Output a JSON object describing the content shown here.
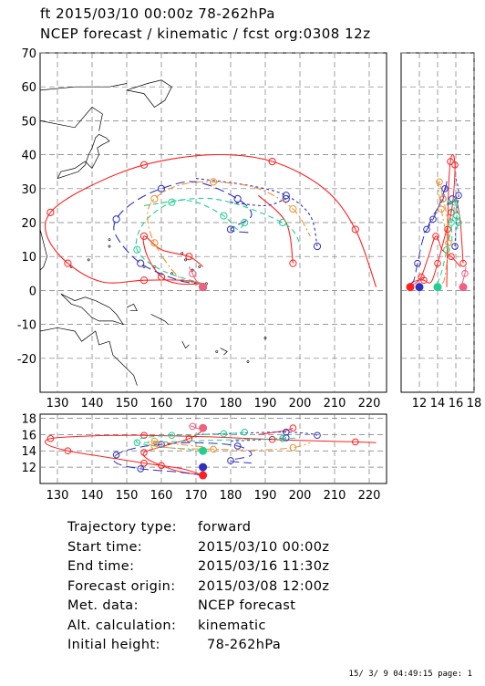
{
  "header": {
    "line1": "ft 2015/03/10 00:00z   78-262hPa",
    "line2": "NCEP forecast / kinematic / fcst org:0308 12z"
  },
  "info": [
    {
      "label": "Trajectory type:",
      "value": "forward"
    },
    {
      "label": "Start time:",
      "value": "2015/03/10 00:00z"
    },
    {
      "label": "End time:",
      "value": "2015/03/16 11:30z"
    },
    {
      "label": "Forecast origin:",
      "value": "2015/03/08 12:00z"
    },
    {
      "label": "Met. data:",
      "value": "NCEP forecast"
    },
    {
      "label": "Alt. calculation:",
      "value": "kinematic"
    },
    {
      "label": "Initial height:",
      "value": "  78-262hPa"
    }
  ],
  "footer": "15/ 3/ 9 04:49:15 page: 1",
  "colors": {
    "red": "#ff2020",
    "blue": "#3030c0",
    "green": "#20d090",
    "orange": "#f09030",
    "pink": "#f06080",
    "grid": "#777777"
  },
  "chart_data": {
    "type": "scatter",
    "map": {
      "xlabel_ticks": [
        "130",
        "140",
        "150",
        "160",
        "170",
        "180",
        "190",
        "200",
        "210",
        "220"
      ],
      "ylabel_ticks": [
        "70",
        "60",
        "50",
        "40",
        "30",
        "20",
        "10",
        "0",
        "-10",
        "-20"
      ],
      "xlim": [
        125,
        225
      ],
      "ylim": [
        -30,
        70
      ]
    },
    "side_panel": {
      "xticks": [
        "12",
        "14",
        "16",
        "18"
      ],
      "xlim": [
        10,
        18
      ]
    },
    "bottom_panel": {
      "yticks": [
        "18",
        "16",
        "14",
        "12"
      ],
      "ylim": [
        10,
        18.5
      ],
      "xticks": [
        "130",
        "140",
        "150",
        "160",
        "170",
        "180",
        "190",
        "200",
        "210",
        "220"
      ]
    },
    "series": [
      {
        "color": "red",
        "dash": "",
        "lonlat": [
          [
            172,
            2
          ],
          [
            166,
            3
          ],
          [
            155,
            3
          ],
          [
            143,
            2.5
          ],
          [
            133,
            8
          ],
          [
            127,
            16
          ],
          [
            128,
            23
          ],
          [
            138,
            30
          ],
          [
            155,
            37
          ],
          [
            175,
            40
          ],
          [
            192,
            38
          ],
          [
            207,
            30
          ],
          [
            216,
            18
          ],
          [
            222,
            1
          ]
        ],
        "time": [
          11,
          11.5,
          12,
          12.5,
          13.2,
          14,
          14.6,
          15,
          15.4,
          15.8,
          16.2,
          16.6,
          17,
          17.4
        ],
        "height": [
          11,
          11.8,
          12.5,
          13.3,
          14,
          14.8,
          15.5,
          15.8,
          15.9,
          15.7,
          15.4,
          15.2,
          15.1,
          15.0
        ]
      },
      {
        "color": "red",
        "dash": "",
        "lonlat": [
          [
            172,
            2
          ],
          [
            165,
            2
          ],
          [
            160,
            4
          ],
          [
            156,
            10
          ],
          [
            155,
            16
          ],
          [
            160,
            12
          ],
          [
            168,
            10
          ],
          [
            172,
            7
          ]
        ],
        "time": [
          11,
          11.4,
          11.8,
          12.3,
          12.8,
          13.2,
          13.8,
          14.4
        ],
        "height": [
          11,
          11.5,
          12.2,
          13,
          13.8,
          14.5,
          15.5,
          16.5
        ]
      },
      {
        "color": "red",
        "dash": "",
        "lonlat": [
          [
            188,
            28
          ],
          [
            196,
            20
          ],
          [
            198,
            8
          ]
        ],
        "time": [
          15,
          15.6,
          16.3
        ],
        "height": [
          16,
          16.5,
          16.8
        ]
      },
      {
        "color": "blue",
        "dash": "10,5",
        "lonlat": [
          [
            172,
            2
          ],
          [
            165,
            3
          ],
          [
            154,
            8
          ],
          [
            147,
            16
          ],
          [
            147,
            21
          ],
          [
            152,
            26
          ],
          [
            160,
            30
          ],
          [
            170,
            32
          ],
          [
            182,
            27
          ],
          [
            186,
            22
          ],
          [
            180,
            18
          ],
          [
            186,
            17
          ]
        ],
        "time": [
          11,
          11.5,
          12,
          12.5,
          13,
          13.4,
          13.8,
          14.2,
          14.6,
          15,
          15.4,
          15.8
        ],
        "height": [
          11,
          11.4,
          11.8,
          12.5,
          13.5,
          14.3,
          14.8,
          15.0,
          14.6,
          13.5,
          12.8,
          12.5
        ]
      },
      {
        "color": "blue",
        "dash": "3,3",
        "lonlat": [
          [
            170,
            33
          ],
          [
            185,
            31
          ],
          [
            196,
            28
          ],
          [
            203,
            22
          ],
          [
            205,
            13
          ]
        ],
        "time": [
          14,
          14.6,
          15.2,
          15.8,
          16.4
        ],
        "height": [
          16,
          16.2,
          16.3,
          16.1,
          15.9
        ]
      },
      {
        "color": "blue",
        "dash": "3,3",
        "lonlat": [
          [
            180,
            26
          ],
          [
            190,
            25
          ],
          [
            196,
            27
          ]
        ],
        "time": [
          13.5,
          14.2,
          14.8
        ],
        "height": [
          15.2,
          15.4,
          15.6
        ]
      },
      {
        "color": "green",
        "dash": "6,4",
        "lonlat": [
          [
            172,
            2
          ],
          [
            160,
            6
          ],
          [
            153,
            12
          ],
          [
            155,
            20
          ],
          [
            163,
            26
          ],
          [
            170,
            26
          ],
          [
            178,
            22
          ],
          [
            182,
            18
          ],
          [
            184,
            20
          ]
        ],
        "time": [
          11,
          11.6,
          12.3,
          13,
          13.6,
          14.2,
          14.7,
          15.2,
          15.6
        ],
        "height": [
          14,
          14.5,
          15,
          15.6,
          15.9,
          16.0,
          16.1,
          16.2,
          16.3
        ]
      },
      {
        "color": "green",
        "dash": "6,4",
        "lonlat": [
          [
            155,
            25
          ],
          [
            175,
            27
          ],
          [
            195,
            20
          ],
          [
            200,
            14
          ]
        ],
        "time": [
          12,
          13,
          14,
          15
        ],
        "height": [
          15,
          15.3,
          15.5,
          15.6
        ]
      },
      {
        "color": "orange",
        "dash": "8,3,2,3",
        "lonlat": [
          [
            172,
            2
          ],
          [
            165,
            4
          ],
          [
            158,
            14
          ],
          [
            156,
            22
          ],
          [
            158,
            27
          ],
          [
            165,
            31
          ],
          [
            175,
            32
          ],
          [
            188,
            30
          ],
          [
            198,
            24
          ],
          [
            203,
            16
          ]
        ],
        "time": [
          11,
          11.5,
          12.2,
          12.8,
          13.4,
          14,
          14.6,
          15.2,
          15.8,
          16.4
        ],
        "height": [
          14.5,
          14.8,
          15.2,
          15.0,
          14.6,
          14.3,
          14.2,
          14.1,
          14.4,
          15.0
        ]
      },
      {
        "color": "pink",
        "dash": "",
        "lonlat": [
          [
            172,
            1
          ],
          [
            170,
            3
          ],
          [
            169,
            5
          ],
          [
            168,
            7
          ]
        ],
        "time": [
          11,
          11.2,
          11.4,
          11.6
        ],
        "height": [
          16.6,
          16.8,
          17.0,
          17.1
        ]
      }
    ]
  }
}
